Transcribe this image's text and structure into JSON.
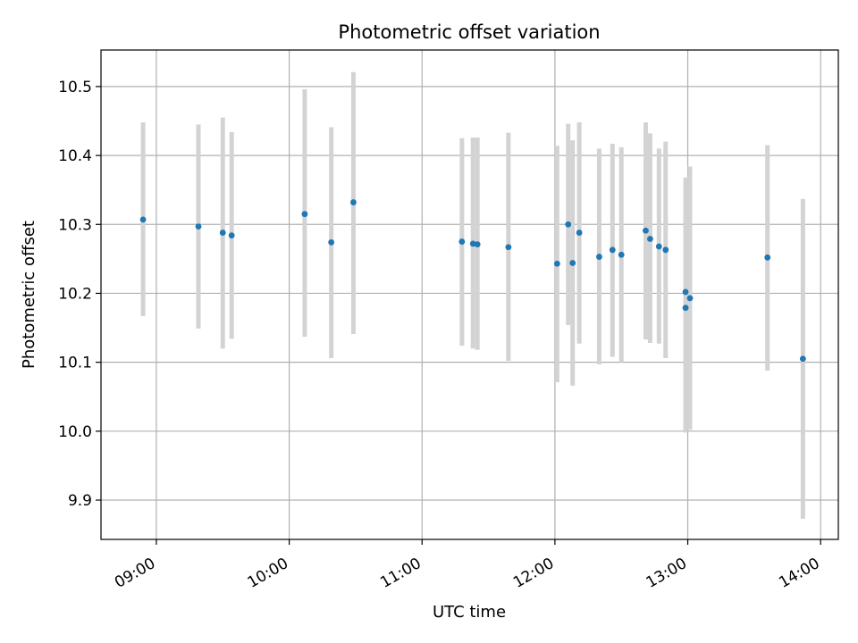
{
  "chart_data": {
    "type": "scatter",
    "title": "Photometric offset variation",
    "xlabel": "UTC time",
    "ylabel": "Photometric offset",
    "x_ticks": [
      "09:00",
      "10:00",
      "11:00",
      "12:00",
      "13:00",
      "14:00"
    ],
    "y_ticks": [
      "9.9",
      "10.0",
      "10.1",
      "10.2",
      "10.3",
      "10.4",
      "10.5"
    ],
    "xlim": [
      "08:35",
      "14:08"
    ],
    "ylim": [
      9.843,
      10.553
    ],
    "grid": true,
    "colors": {
      "marker": "#1f77b4",
      "errorbar": "#d3d3d3",
      "grid": "#b0b0b0"
    },
    "points": [
      {
        "time": "08:54",
        "y": 10.307,
        "lo": 10.167,
        "hi": 10.448
      },
      {
        "time": "09:19",
        "y": 10.297,
        "lo": 10.149,
        "hi": 10.445
      },
      {
        "time": "09:30",
        "y": 10.288,
        "lo": 10.12,
        "hi": 10.455
      },
      {
        "time": "09:34",
        "y": 10.284,
        "lo": 10.134,
        "hi": 10.434
      },
      {
        "time": "10:07",
        "y": 10.315,
        "lo": 10.137,
        "hi": 10.496
      },
      {
        "time": "10:19",
        "y": 10.274,
        "lo": 10.106,
        "hi": 10.441
      },
      {
        "time": "10:29",
        "y": 10.332,
        "lo": 10.141,
        "hi": 10.521
      },
      {
        "time": "11:18",
        "y": 10.275,
        "lo": 10.124,
        "hi": 10.425
      },
      {
        "time": "11:23",
        "y": 10.272,
        "lo": 10.12,
        "hi": 10.426
      },
      {
        "time": "11:25",
        "y": 10.271,
        "lo": 10.118,
        "hi": 10.426
      },
      {
        "time": "11:39",
        "y": 10.267,
        "lo": 10.102,
        "hi": 10.433
      },
      {
        "time": "12:01",
        "y": 10.243,
        "lo": 10.071,
        "hi": 10.414
      },
      {
        "time": "12:06",
        "y": 10.3,
        "lo": 10.154,
        "hi": 10.446
      },
      {
        "time": "12:08",
        "y": 10.244,
        "lo": 10.066,
        "hi": 10.422
      },
      {
        "time": "12:11",
        "y": 10.288,
        "lo": 10.127,
        "hi": 10.448
      },
      {
        "time": "12:20",
        "y": 10.253,
        "lo": 10.097,
        "hi": 10.41
      },
      {
        "time": "12:26",
        "y": 10.263,
        "lo": 10.108,
        "hi": 10.417
      },
      {
        "time": "12:30",
        "y": 10.256,
        "lo": 10.1,
        "hi": 10.412
      },
      {
        "time": "12:41",
        "y": 10.291,
        "lo": 10.133,
        "hi": 10.448
      },
      {
        "time": "12:43",
        "y": 10.279,
        "lo": 10.128,
        "hi": 10.432
      },
      {
        "time": "12:47",
        "y": 10.268,
        "lo": 10.127,
        "hi": 10.41
      },
      {
        "time": "12:50",
        "y": 10.263,
        "lo": 10.106,
        "hi": 10.42
      },
      {
        "time": "12:59",
        "y": 10.179,
        "lo": 9.998,
        "hi": 10.36
      },
      {
        "time": "12:59",
        "y": 10.202,
        "lo": 10.003,
        "hi": 10.368
      },
      {
        "time": "13:01",
        "y": 10.193,
        "lo": 10.002,
        "hi": 10.384
      },
      {
        "time": "13:36",
        "y": 10.252,
        "lo": 10.088,
        "hi": 10.415
      },
      {
        "time": "13:52",
        "y": 10.105,
        "lo": 9.873,
        "hi": 10.337
      }
    ]
  }
}
